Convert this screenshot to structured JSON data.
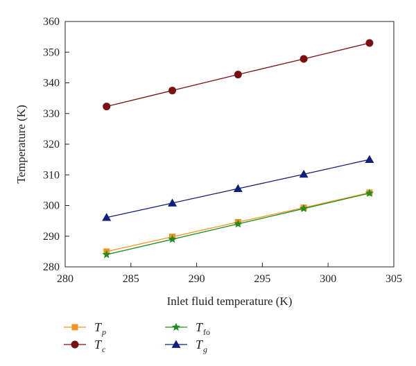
{
  "chart_data": {
    "type": "line",
    "title": "",
    "xlabel": "Inlet fluid temperature (K)",
    "ylabel": "Temperature (K)",
    "xlim": [
      280,
      305
    ],
    "ylim": [
      280,
      360
    ],
    "xticks": [
      280,
      285,
      290,
      295,
      300,
      305
    ],
    "yticks": [
      280,
      290,
      300,
      310,
      320,
      330,
      340,
      350,
      360
    ],
    "grid": false,
    "legend_position": "bottom",
    "x": [
      283.15,
      288.15,
      293.15,
      298.15,
      303.15
    ],
    "series": [
      {
        "key": "tp",
        "name": "T",
        "subscript": "p",
        "marker": "square",
        "color": "#f0961e",
        "values": [
          285.0,
          289.8,
          294.6,
          299.3,
          304.2
        ]
      },
      {
        "key": "tc",
        "name": "T",
        "subscript": "c",
        "marker": "circle",
        "color": "#7b1010",
        "values": [
          332.3,
          337.5,
          342.7,
          347.8,
          353.0
        ]
      },
      {
        "key": "tfo",
        "name": "T",
        "subscript": "fo",
        "marker": "star",
        "color": "#1e8c1e",
        "values": [
          284.0,
          289.0,
          294.0,
          299.0,
          304.0
        ]
      },
      {
        "key": "tg",
        "name": "T",
        "subscript": "g",
        "marker": "triangle",
        "color": "#0f1f7a",
        "values": [
          296.1,
          300.8,
          305.5,
          310.2,
          315.0
        ]
      }
    ]
  }
}
